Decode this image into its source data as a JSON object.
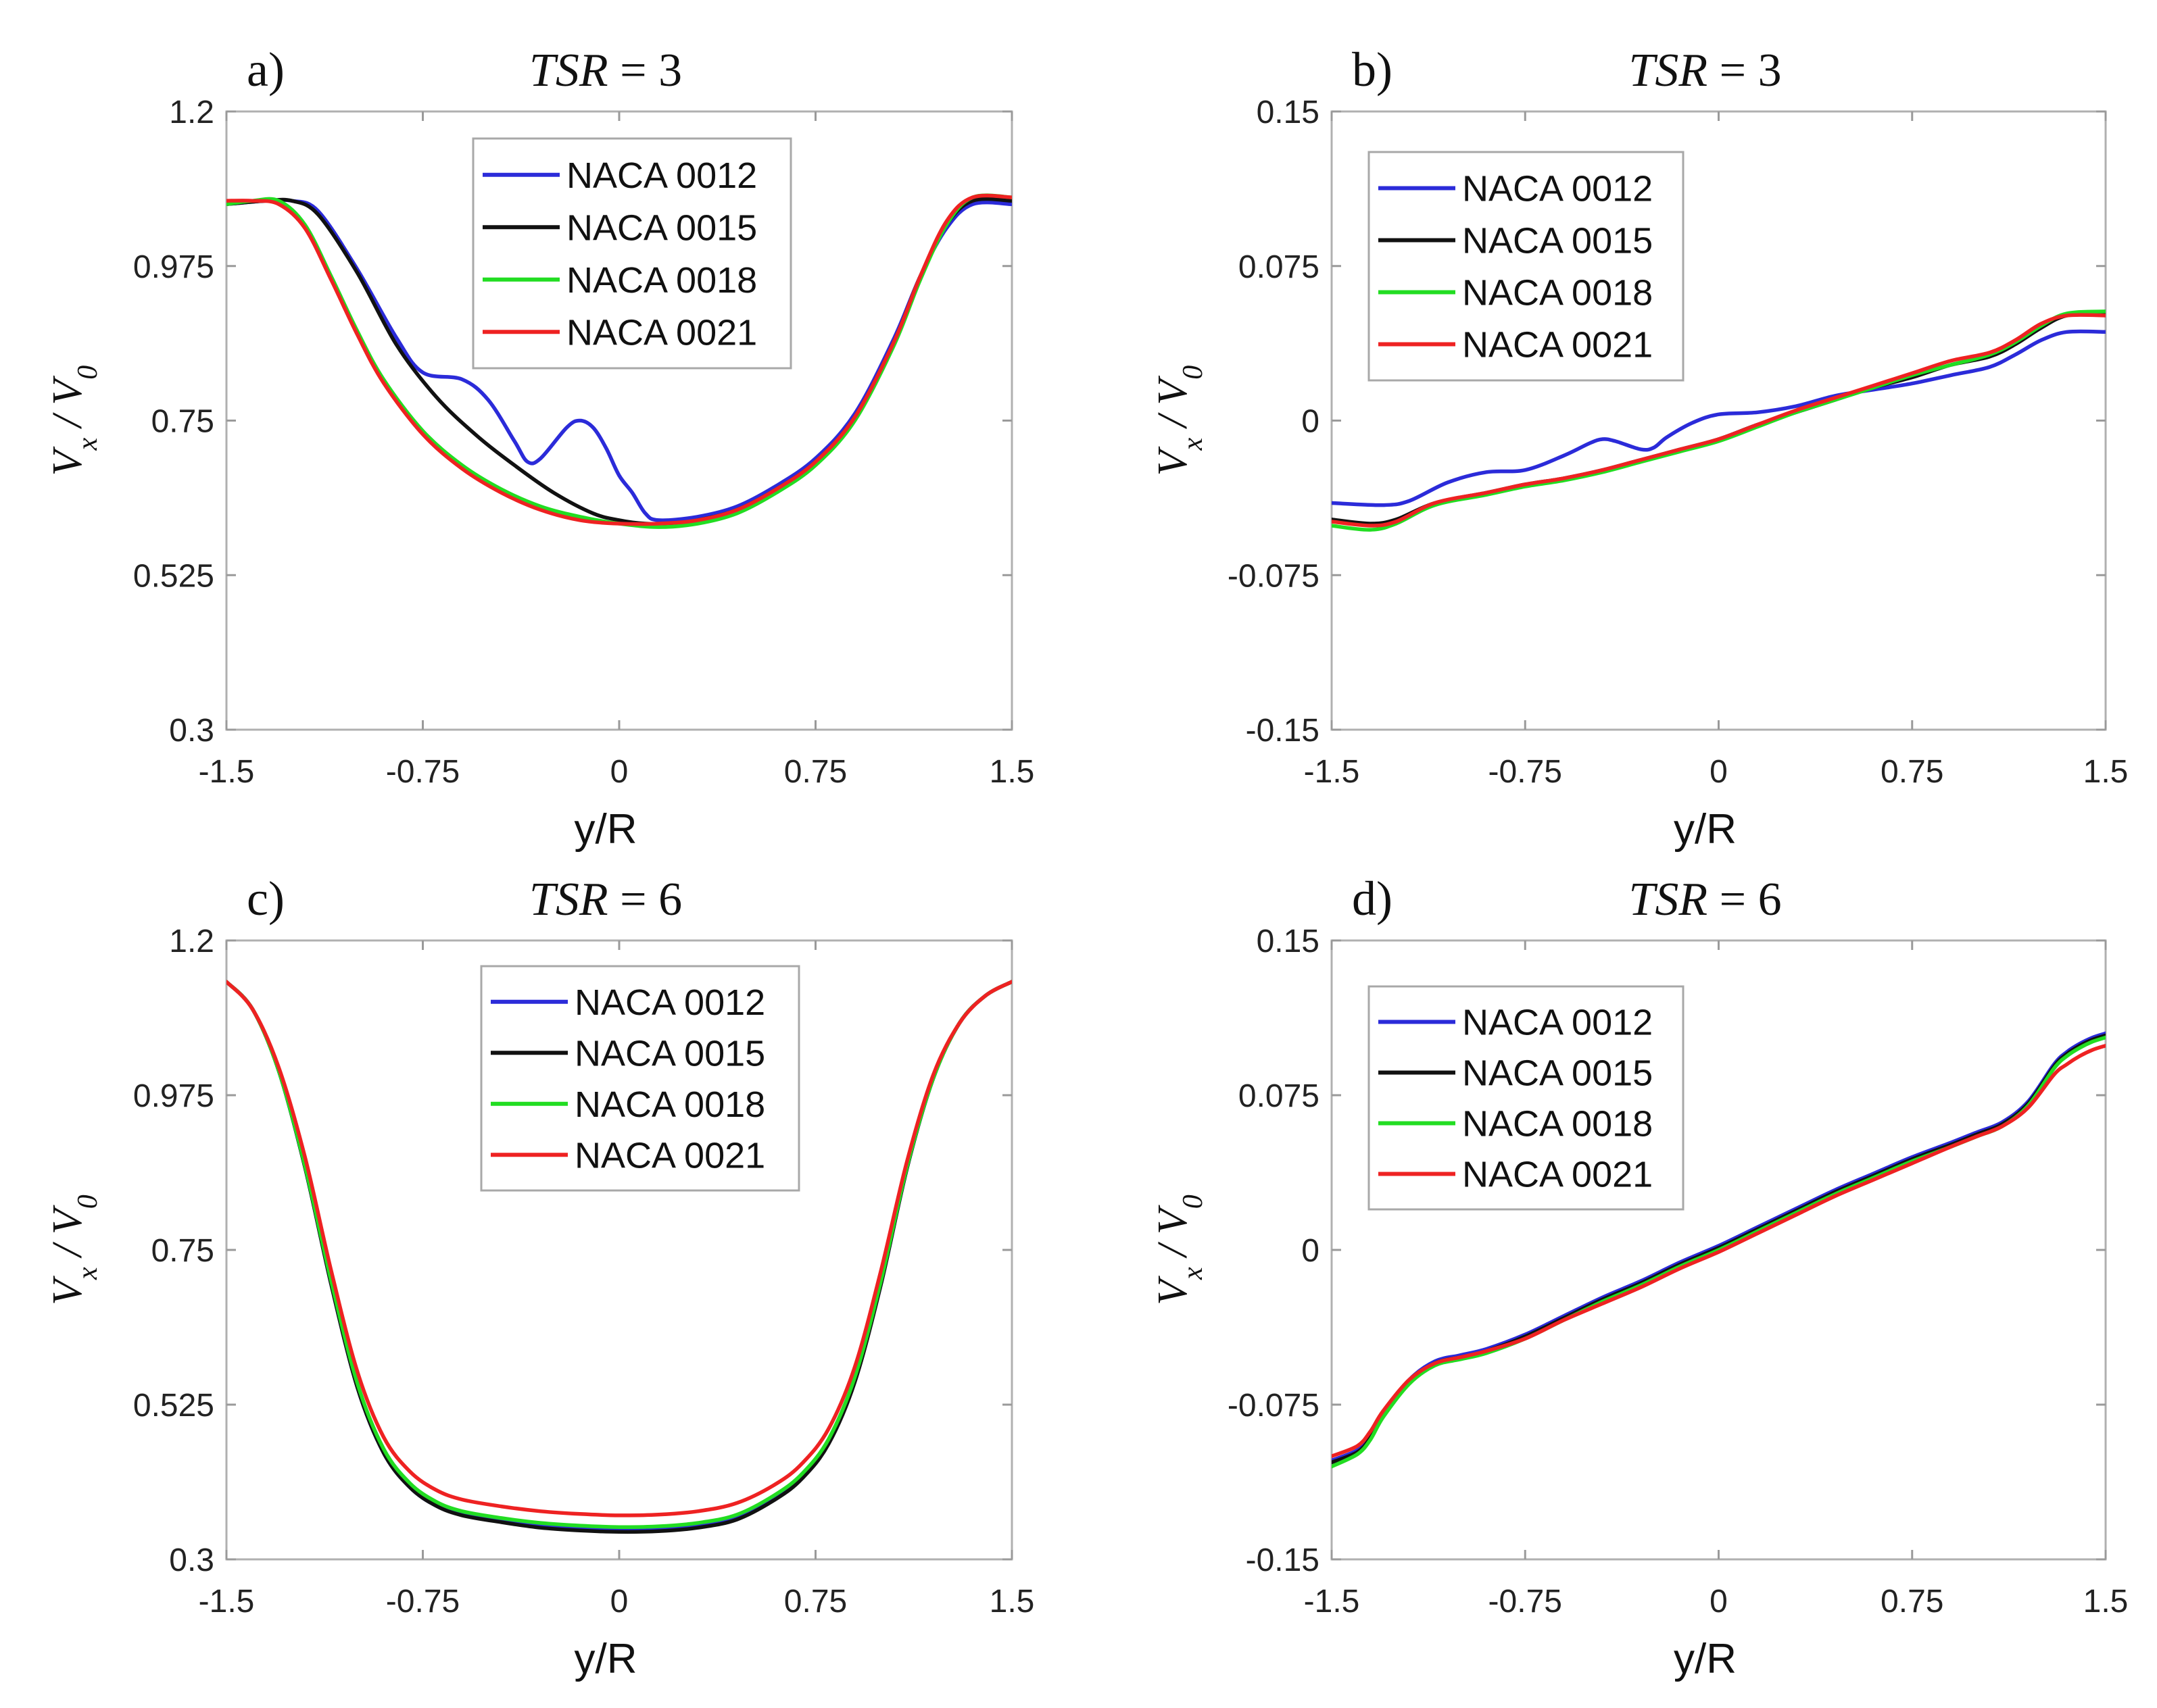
{
  "chart_data": [
    {
      "type": "line",
      "panel": "a)",
      "title_var": "TSR",
      "title_value": "3",
      "xlabel": "y/R",
      "ylabel_main": "V",
      "ylabel_sub1": "x",
      "ylabel_sep": " / ",
      "ylabel_main2": "V",
      "ylabel_sub2": "0",
      "xlim": [
        -1.5,
        1.5
      ],
      "ylim": [
        0.3,
        1.2
      ],
      "xticks": [
        "-1.5",
        "-0.75",
        "0",
        "0.75",
        "1.5"
      ],
      "yticks": [
        "1.2",
        "0.975",
        "0.75",
        "0.525",
        "0.3"
      ],
      "legend_position": "top-center",
      "series": [
        {
          "name": "NACA 0012",
          "color": "#2b2bd9",
          "x": [
            -1.5,
            -1.35,
            -1.25,
            -1.15,
            -1.0,
            -0.85,
            -0.75,
            -0.6,
            -0.5,
            -0.4,
            -0.35,
            -0.3,
            -0.2,
            -0.15,
            -0.1,
            -0.05,
            0.0,
            0.05,
            0.1,
            0.15,
            0.3,
            0.45,
            0.6,
            0.75,
            0.9,
            1.05,
            1.15,
            1.25,
            1.35,
            1.5
          ],
          "y": [
            1.065,
            1.07,
            1.07,
            1.055,
            0.97,
            0.87,
            0.82,
            0.81,
            0.78,
            0.72,
            0.69,
            0.695,
            0.74,
            0.75,
            0.74,
            0.71,
            0.67,
            0.645,
            0.615,
            0.605,
            0.61,
            0.625,
            0.655,
            0.695,
            0.76,
            0.87,
            0.96,
            1.03,
            1.065,
            1.065
          ]
        },
        {
          "name": "NACA 0015",
          "color": "#111111",
          "x": [
            -1.5,
            -1.35,
            -1.25,
            -1.15,
            -1.0,
            -0.85,
            -0.7,
            -0.55,
            -0.4,
            -0.25,
            -0.1,
            0.0,
            0.1,
            0.2,
            0.3,
            0.45,
            0.6,
            0.75,
            0.9,
            1.05,
            1.15,
            1.25,
            1.35,
            1.5
          ],
          "y": [
            1.065,
            1.07,
            1.07,
            1.05,
            0.965,
            0.86,
            0.785,
            0.73,
            0.685,
            0.645,
            0.615,
            0.605,
            0.6,
            0.6,
            0.605,
            0.62,
            0.65,
            0.69,
            0.755,
            0.865,
            0.96,
            1.035,
            1.07,
            1.07
          ]
        },
        {
          "name": "NACA 0018",
          "color": "#22dd22",
          "x": [
            -1.5,
            -1.4,
            -1.3,
            -1.2,
            -1.1,
            -1.0,
            -0.9,
            -0.75,
            -0.6,
            -0.45,
            -0.3,
            -0.15,
            0.0,
            0.15,
            0.3,
            0.45,
            0.6,
            0.75,
            0.9,
            1.05,
            1.15,
            1.25,
            1.35,
            1.5
          ],
          "y": [
            1.065,
            1.07,
            1.07,
            1.035,
            0.96,
            0.88,
            0.81,
            0.735,
            0.685,
            0.65,
            0.625,
            0.61,
            0.6,
            0.595,
            0.6,
            0.615,
            0.645,
            0.685,
            0.75,
            0.86,
            0.955,
            1.035,
            1.075,
            1.075
          ]
        },
        {
          "name": "NACA 0021",
          "color": "#ee2222",
          "x": [
            -1.5,
            -1.4,
            -1.3,
            -1.2,
            -1.1,
            -1.0,
            -0.9,
            -0.75,
            -0.6,
            -0.45,
            -0.3,
            -0.15,
            0.0,
            0.15,
            0.3,
            0.45,
            0.6,
            0.75,
            0.9,
            1.05,
            1.15,
            1.25,
            1.35,
            1.5
          ],
          "y": [
            1.07,
            1.07,
            1.065,
            1.03,
            0.955,
            0.875,
            0.805,
            0.73,
            0.68,
            0.645,
            0.62,
            0.605,
            0.6,
            0.6,
            0.605,
            0.62,
            0.65,
            0.69,
            0.755,
            0.865,
            0.96,
            1.04,
            1.075,
            1.075
          ]
        }
      ]
    },
    {
      "type": "line",
      "panel": "b)",
      "title_var": "TSR",
      "title_value": "3",
      "xlabel": "y/R",
      "ylabel_main": "V",
      "ylabel_sub1": "x",
      "ylabel_sep": " / ",
      "ylabel_main2": "V",
      "ylabel_sub2": "0",
      "xlim": [
        -1.5,
        1.5
      ],
      "ylim": [
        -0.15,
        0.15
      ],
      "xticks": [
        "-1.5",
        "-0.75",
        "0",
        "0.75",
        "1.5"
      ],
      "yticks": [
        "0.15",
        "0.075",
        "0",
        "-0.075",
        "-0.15"
      ],
      "legend_position": "top-left",
      "series": [
        {
          "name": "NACA 0012",
          "color": "#2b2bd9",
          "x": [
            -1.5,
            -1.3,
            -1.2,
            -1.05,
            -0.9,
            -0.75,
            -0.6,
            -0.5,
            -0.45,
            -0.4,
            -0.3,
            -0.25,
            -0.2,
            -0.1,
            0.0,
            0.15,
            0.3,
            0.45,
            0.6,
            0.75,
            0.9,
            1.05,
            1.15,
            1.25,
            1.35,
            1.5
          ],
          "y": [
            -0.04,
            -0.041,
            -0.039,
            -0.03,
            -0.025,
            -0.024,
            -0.017,
            -0.011,
            -0.009,
            -0.01,
            -0.014,
            -0.013,
            -0.008,
            -0.001,
            0.003,
            0.004,
            0.007,
            0.012,
            0.015,
            0.018,
            0.022,
            0.026,
            0.032,
            0.039,
            0.043,
            0.043
          ]
        },
        {
          "name": "NACA 0015",
          "color": "#111111",
          "x": [
            -1.5,
            -1.35,
            -1.25,
            -1.1,
            -0.9,
            -0.75,
            -0.6,
            -0.45,
            -0.3,
            -0.15,
            0.0,
            0.15,
            0.3,
            0.45,
            0.6,
            0.75,
            0.9,
            1.05,
            1.15,
            1.25,
            1.35,
            1.5
          ],
          "y": [
            -0.048,
            -0.05,
            -0.048,
            -0.04,
            -0.035,
            -0.031,
            -0.028,
            -0.024,
            -0.019,
            -0.014,
            -0.009,
            -0.002,
            0.004,
            0.01,
            0.016,
            0.021,
            0.027,
            0.031,
            0.037,
            0.045,
            0.051,
            0.052
          ]
        },
        {
          "name": "NACA 0018",
          "color": "#22dd22",
          "x": [
            -1.5,
            -1.35,
            -1.25,
            -1.1,
            -0.9,
            -0.75,
            -0.6,
            -0.45,
            -0.3,
            -0.15,
            0.0,
            0.15,
            0.3,
            0.45,
            0.6,
            0.75,
            0.9,
            1.05,
            1.15,
            1.25,
            1.35,
            1.5
          ],
          "y": [
            -0.051,
            -0.053,
            -0.05,
            -0.041,
            -0.036,
            -0.032,
            -0.029,
            -0.025,
            -0.02,
            -0.015,
            -0.01,
            -0.003,
            0.004,
            0.01,
            0.016,
            0.022,
            0.027,
            0.032,
            0.038,
            0.046,
            0.052,
            0.053
          ]
        },
        {
          "name": "NACA 0021",
          "color": "#ee2222",
          "x": [
            -1.5,
            -1.35,
            -1.25,
            -1.1,
            -0.9,
            -0.75,
            -0.6,
            -0.45,
            -0.3,
            -0.15,
            0.0,
            0.15,
            0.3,
            0.45,
            0.6,
            0.75,
            0.9,
            1.05,
            1.15,
            1.25,
            1.35,
            1.5
          ],
          "y": [
            -0.049,
            -0.051,
            -0.049,
            -0.04,
            -0.035,
            -0.031,
            -0.028,
            -0.024,
            -0.019,
            -0.014,
            -0.009,
            -0.002,
            0.005,
            0.011,
            0.017,
            0.023,
            0.029,
            0.033,
            0.039,
            0.047,
            0.051,
            0.051
          ]
        }
      ]
    },
    {
      "type": "line",
      "panel": "c)",
      "title_var": "TSR",
      "title_value": "6",
      "xlabel": "y/R",
      "ylabel_main": "V",
      "ylabel_sub1": "x",
      "ylabel_sep": " / ",
      "ylabel_main2": "V",
      "ylabel_sub2": "0",
      "xlim": [
        -1.5,
        1.5
      ],
      "ylim": [
        0.3,
        1.2
      ],
      "xticks": [
        "-1.5",
        "-0.75",
        "0",
        "0.75",
        "1.5"
      ],
      "yticks": [
        "1.2",
        "0.975",
        "0.75",
        "0.525",
        "0.3"
      ],
      "legend_position": "top-center",
      "series": [
        {
          "name": "NACA 0012",
          "color": "#2b2bd9",
          "x": [
            -1.5,
            -1.4,
            -1.3,
            -1.2,
            -1.1,
            -1.0,
            -0.9,
            -0.8,
            -0.7,
            -0.6,
            -0.45,
            -0.3,
            -0.15,
            0.0,
            0.15,
            0.3,
            0.45,
            0.6,
            0.7,
            0.8,
            0.9,
            1.0,
            1.1,
            1.2,
            1.3,
            1.4,
            1.5
          ],
          "y": [
            1.14,
            1.1,
            1.01,
            0.87,
            0.7,
            0.55,
            0.455,
            0.405,
            0.378,
            0.365,
            0.355,
            0.348,
            0.344,
            0.342,
            0.343,
            0.348,
            0.36,
            0.39,
            0.42,
            0.47,
            0.56,
            0.7,
            0.87,
            1.0,
            1.08,
            1.12,
            1.14
          ]
        },
        {
          "name": "NACA 0015",
          "color": "#111111",
          "x": [
            -1.5,
            -1.4,
            -1.3,
            -1.2,
            -1.1,
            -1.0,
            -0.9,
            -0.8,
            -0.7,
            -0.6,
            -0.45,
            -0.3,
            -0.15,
            0.0,
            0.15,
            0.3,
            0.45,
            0.6,
            0.7,
            0.8,
            0.9,
            1.0,
            1.1,
            1.2,
            1.3,
            1.4,
            1.5
          ],
          "y": [
            1.14,
            1.1,
            1.01,
            0.87,
            0.7,
            0.55,
            0.455,
            0.405,
            0.378,
            0.364,
            0.354,
            0.346,
            0.342,
            0.34,
            0.341,
            0.346,
            0.358,
            0.388,
            0.418,
            0.468,
            0.558,
            0.7,
            0.87,
            1.0,
            1.08,
            1.12,
            1.14
          ]
        },
        {
          "name": "NACA 0018",
          "color": "#22dd22",
          "x": [
            -1.5,
            -1.4,
            -1.3,
            -1.2,
            -1.1,
            -1.0,
            -0.9,
            -0.8,
            -0.7,
            -0.6,
            -0.45,
            -0.3,
            -0.15,
            0.0,
            0.15,
            0.3,
            0.45,
            0.6,
            0.7,
            0.8,
            0.9,
            1.0,
            1.1,
            1.2,
            1.3,
            1.4,
            1.5
          ],
          "y": [
            1.14,
            1.1,
            1.01,
            0.872,
            0.705,
            0.556,
            0.461,
            0.411,
            0.384,
            0.37,
            0.36,
            0.353,
            0.349,
            0.347,
            0.348,
            0.353,
            0.365,
            0.395,
            0.425,
            0.475,
            0.565,
            0.705,
            0.872,
            1.0,
            1.08,
            1.12,
            1.14
          ]
        },
        {
          "name": "NACA 0021",
          "color": "#ee2222",
          "x": [
            -1.5,
            -1.4,
            -1.3,
            -1.2,
            -1.1,
            -1.0,
            -0.9,
            -0.8,
            -0.7,
            -0.6,
            -0.45,
            -0.3,
            -0.15,
            0.0,
            0.15,
            0.3,
            0.45,
            0.6,
            0.7,
            0.8,
            0.9,
            1.0,
            1.1,
            1.2,
            1.3,
            1.4,
            1.5
          ],
          "y": [
            1.14,
            1.1,
            1.015,
            0.885,
            0.72,
            0.573,
            0.478,
            0.428,
            0.401,
            0.387,
            0.377,
            0.37,
            0.366,
            0.364,
            0.365,
            0.37,
            0.382,
            0.41,
            0.44,
            0.49,
            0.58,
            0.72,
            0.88,
            1.005,
            1.08,
            1.12,
            1.14
          ]
        }
      ]
    },
    {
      "type": "line",
      "panel": "d)",
      "title_var": "TSR",
      "title_value": "6",
      "xlabel": "y/R",
      "ylabel_main": "V",
      "ylabel_sub1": "x",
      "ylabel_sep": " / ",
      "ylabel_main2": "V",
      "ylabel_sub2": "0",
      "xlim": [
        -1.5,
        1.5
      ],
      "ylim": [
        -0.15,
        0.15
      ],
      "xticks": [
        "-1.5",
        "-0.75",
        "0",
        "0.75",
        "1.5"
      ],
      "yticks": [
        "0.15",
        "0.075",
        "0",
        "-0.075",
        "-0.15"
      ],
      "legend_position": "top-left",
      "series": [
        {
          "name": "NACA 0012",
          "color": "#2b2bd9",
          "x": [
            -1.5,
            -1.4,
            -1.35,
            -1.3,
            -1.2,
            -1.1,
            -1.0,
            -0.9,
            -0.75,
            -0.6,
            -0.45,
            -0.3,
            -0.15,
            0.0,
            0.15,
            0.3,
            0.45,
            0.6,
            0.75,
            0.9,
            1.0,
            1.1,
            1.2,
            1.3,
            1.35,
            1.4,
            1.45,
            1.5
          ],
          "y": [
            -0.102,
            -0.097,
            -0.09,
            -0.079,
            -0.063,
            -0.054,
            -0.051,
            -0.048,
            -0.041,
            -0.032,
            -0.023,
            -0.015,
            -0.006,
            0.002,
            0.011,
            0.02,
            0.029,
            0.037,
            0.045,
            0.052,
            0.057,
            0.062,
            0.072,
            0.09,
            0.096,
            0.1,
            0.103,
            0.105
          ]
        },
        {
          "name": "NACA 0015",
          "color": "#111111",
          "x": [
            -1.5,
            -1.4,
            -1.35,
            -1.3,
            -1.2,
            -1.1,
            -1.0,
            -0.9,
            -0.75,
            -0.6,
            -0.45,
            -0.3,
            -0.15,
            0.0,
            0.15,
            0.3,
            0.45,
            0.6,
            0.75,
            0.9,
            1.0,
            1.1,
            1.2,
            1.3,
            1.35,
            1.4,
            1.45,
            1.5
          ],
          "y": [
            -0.103,
            -0.098,
            -0.091,
            -0.08,
            -0.064,
            -0.055,
            -0.052,
            -0.049,
            -0.042,
            -0.033,
            -0.024,
            -0.016,
            -0.007,
            0.001,
            0.01,
            0.019,
            0.028,
            0.036,
            0.044,
            0.051,
            0.056,
            0.061,
            0.071,
            0.089,
            0.095,
            0.099,
            0.102,
            0.104
          ]
        },
        {
          "name": "NACA 0018",
          "color": "#22dd22",
          "x": [
            -1.5,
            -1.4,
            -1.35,
            -1.3,
            -1.2,
            -1.1,
            -1.0,
            -0.9,
            -0.75,
            -0.6,
            -0.45,
            -0.3,
            -0.15,
            0.0,
            0.15,
            0.3,
            0.45,
            0.6,
            0.75,
            0.9,
            1.0,
            1.1,
            1.2,
            1.3,
            1.35,
            1.4,
            1.45,
            1.5
          ],
          "y": [
            -0.105,
            -0.099,
            -0.092,
            -0.081,
            -0.065,
            -0.056,
            -0.053,
            -0.05,
            -0.043,
            -0.034,
            -0.025,
            -0.017,
            -0.008,
            0.0,
            0.009,
            0.018,
            0.027,
            0.035,
            0.043,
            0.05,
            0.055,
            0.06,
            0.07,
            0.088,
            0.094,
            0.098,
            0.101,
            0.103
          ]
        },
        {
          "name": "NACA 0021",
          "color": "#ee2222",
          "x": [
            -1.5,
            -1.4,
            -1.35,
            -1.3,
            -1.2,
            -1.1,
            -1.0,
            -0.9,
            -0.75,
            -0.6,
            -0.45,
            -0.3,
            -0.15,
            0.0,
            0.15,
            0.3,
            0.45,
            0.6,
            0.75,
            0.9,
            1.0,
            1.1,
            1.2,
            1.3,
            1.35,
            1.4,
            1.45,
            1.5
          ],
          "y": [
            -0.1,
            -0.095,
            -0.088,
            -0.078,
            -0.063,
            -0.055,
            -0.052,
            -0.049,
            -0.043,
            -0.034,
            -0.026,
            -0.018,
            -0.009,
            -0.001,
            0.008,
            0.017,
            0.026,
            0.034,
            0.042,
            0.05,
            0.055,
            0.06,
            0.069,
            0.085,
            0.09,
            0.094,
            0.097,
            0.099
          ]
        }
      ]
    }
  ]
}
